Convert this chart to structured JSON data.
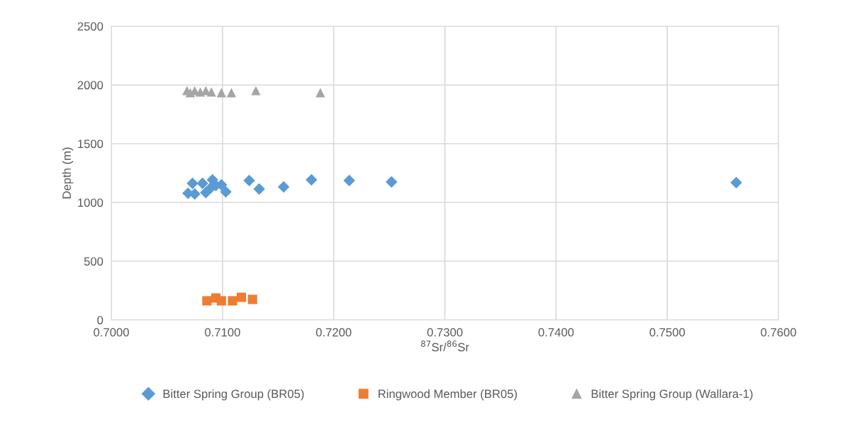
{
  "chart_data": {
    "type": "scatter",
    "xlabel": "$^{87}$Sr/$^{86}$Sr",
    "ylabel": "Depth (m)",
    "xlim": [
      0.7,
      0.76
    ],
    "ylim": [
      0,
      2500
    ],
    "xticks": [
      {
        "value": 0.7,
        "label": "0.7000"
      },
      {
        "value": 0.71,
        "label": "0.7100"
      },
      {
        "value": 0.72,
        "label": "0.7200"
      },
      {
        "value": 0.73,
        "label": "0.7300"
      },
      {
        "value": 0.74,
        "label": "0.7400"
      },
      {
        "value": 0.75,
        "label": "0.7500"
      },
      {
        "value": 0.76,
        "label": "0.7600"
      }
    ],
    "yticks": [
      0,
      500,
      1000,
      1500,
      2000,
      2500
    ],
    "grid": true,
    "legend": "bottom",
    "series": [
      {
        "name": "Bitter Spring Group (BR05)",
        "color": "#5b9bd5",
        "marker": "diamond",
        "x": [
          0.7069,
          0.7073,
          0.7075,
          0.7082,
          0.7085,
          0.7089,
          0.7091,
          0.7094,
          0.7099,
          0.7103,
          0.7124,
          0.7133,
          0.7155,
          0.718,
          0.7214,
          0.7252,
          0.7562
        ],
        "values": [
          1078,
          1163,
          1072,
          1163,
          1084,
          1120,
          1193,
          1145,
          1151,
          1090,
          1187,
          1114,
          1133,
          1193,
          1187,
          1175,
          1169
        ]
      },
      {
        "name": "Ringwood Member (BR05)",
        "color": "#ed7d31",
        "marker": "square",
        "x": [
          0.7086,
          0.7094,
          0.7099,
          0.7109,
          0.7117,
          0.7127
        ],
        "values": [
          163,
          187,
          163,
          163,
          193,
          175
        ]
      },
      {
        "name": "Bitter Spring Group (Wallara-1)",
        "color": "#a5a5a5",
        "marker": "triangle",
        "x": [
          0.7068,
          0.7071,
          0.7075,
          0.708,
          0.7085,
          0.709,
          0.7099,
          0.7108,
          0.713,
          0.7188
        ],
        "values": [
          1952,
          1934,
          1952,
          1940,
          1952,
          1940,
          1934,
          1934,
          1952,
          1934
        ]
      }
    ]
  }
}
